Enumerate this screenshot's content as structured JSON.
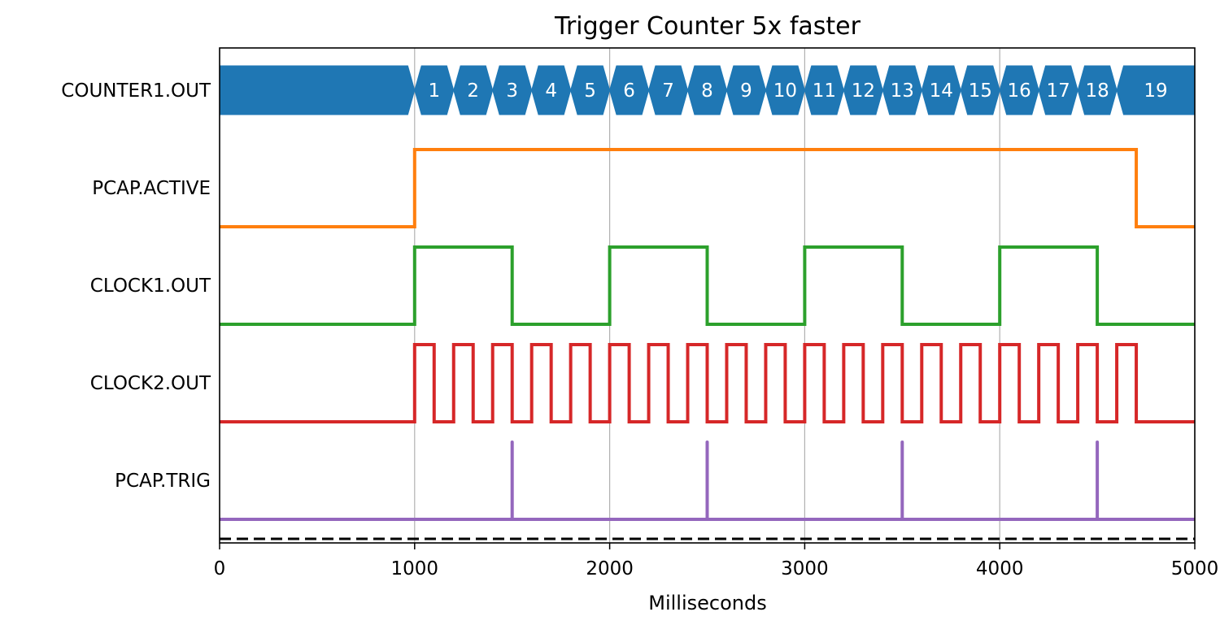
{
  "chart_data": {
    "type": "timing-diagram",
    "title": "Trigger Counter 5x faster",
    "xlabel": "Milliseconds",
    "xlim": [
      0,
      5000
    ],
    "xticks": [
      0,
      1000,
      2000,
      3000,
      4000,
      5000
    ],
    "xtick_labels": [
      "0",
      "1000",
      "2000",
      "3000",
      "4000",
      "5000"
    ],
    "grid": "vertical",
    "series": [
      {
        "name": "COUNTER1.OUT",
        "kind": "bus",
        "color": "#1f77b4",
        "start": 0,
        "step": 100,
        "transitions": [
          1000,
          1200,
          1400,
          1600,
          1800,
          2000,
          2200,
          2400,
          2600,
          2800,
          3000,
          3200,
          3400,
          3600,
          3800,
          4000,
          4200,
          4400,
          4600,
          5000
        ],
        "values": [
          "",
          "1",
          "2",
          "3",
          "4",
          "5",
          "6",
          "7",
          "8",
          "9",
          "10",
          "11",
          "12",
          "13",
          "14",
          "15",
          "16",
          "17",
          "18",
          "19"
        ]
      },
      {
        "name": "PCAP.ACTIVE",
        "kind": "bit",
        "color": "#ff7f0e",
        "x": [
          0,
          1000,
          4700,
          5000
        ],
        "y": [
          0,
          1,
          0,
          0
        ]
      },
      {
        "name": "CLOCK1.OUT",
        "kind": "bit",
        "color": "#2ca02c",
        "x": [
          0,
          1000,
          1500,
          2000,
          2500,
          3000,
          3500,
          4000,
          4500,
          5000
        ],
        "y": [
          0,
          1,
          0,
          1,
          0,
          1,
          0,
          1,
          0,
          0
        ]
      },
      {
        "name": "CLOCK2.OUT",
        "kind": "bit",
        "color": "#d62728",
        "x": [
          0,
          1000,
          1100,
          1200,
          1300,
          1400,
          1500,
          1600,
          1700,
          1800,
          1900,
          2000,
          2100,
          2200,
          2300,
          2400,
          2500,
          2600,
          2700,
          2800,
          2900,
          3000,
          3100,
          3200,
          3300,
          3400,
          3500,
          3600,
          3700,
          3800,
          3900,
          4000,
          4100,
          4200,
          4300,
          4400,
          4500,
          4600,
          4700,
          5000
        ],
        "y": [
          0,
          1,
          0,
          1,
          0,
          1,
          0,
          1,
          0,
          1,
          0,
          1,
          0,
          1,
          0,
          1,
          0,
          1,
          0,
          1,
          0,
          1,
          0,
          1,
          0,
          1,
          0,
          1,
          0,
          1,
          0,
          1,
          0,
          1,
          0,
          1,
          0,
          1,
          0,
          0
        ]
      },
      {
        "name": "PCAP.TRIG",
        "kind": "pulse",
        "color": "#9467bd",
        "pulses": [
          1500,
          2500,
          3500,
          4500
        ]
      }
    ],
    "baseline": {
      "style": "dashed",
      "color": "#000000"
    }
  }
}
